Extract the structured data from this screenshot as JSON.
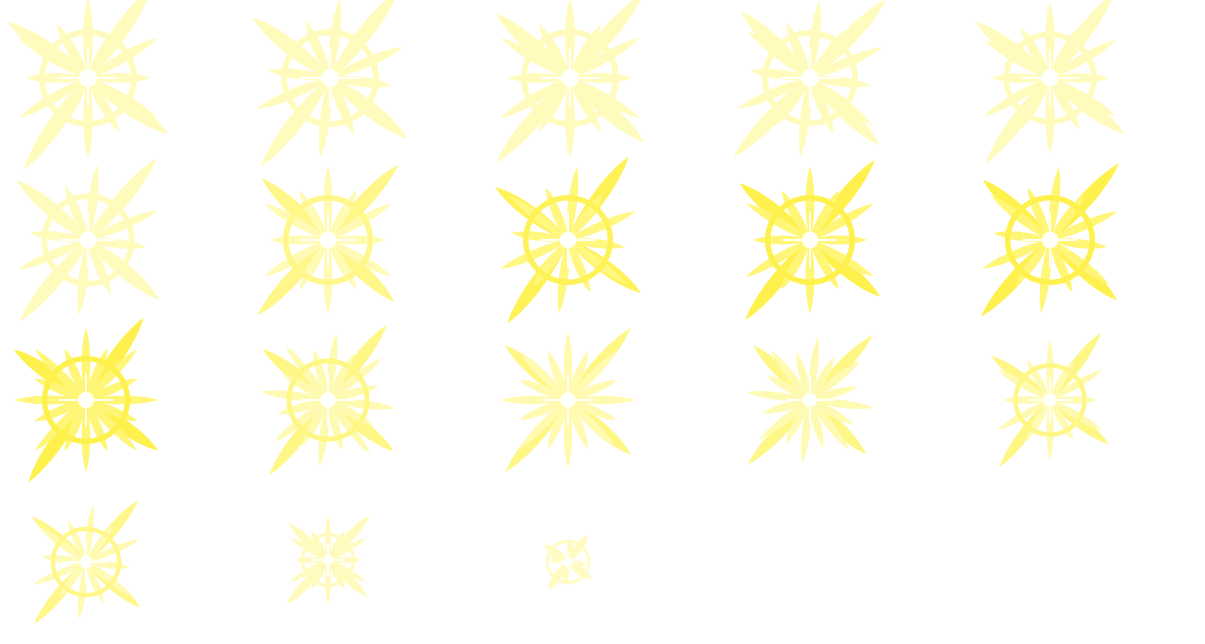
{
  "sprite_sheet": {
    "background_color": "#ffffff",
    "colors": {
      "pale": "#fffaa0",
      "light": "#fff66a",
      "bright": "#fff03a",
      "core": "#ffffff"
    },
    "frames": [
      {
        "id": 1,
        "ray_length": 1.0,
        "spoke_count": 12,
        "ring": true,
        "brightness": 0.55
      },
      {
        "id": 2,
        "ray_length": 1.0,
        "spoke_count": 12,
        "ring": true,
        "brightness": 0.55
      },
      {
        "id": 3,
        "ray_length": 1.0,
        "spoke_count": 12,
        "ring": true,
        "brightness": 0.55
      },
      {
        "id": 4,
        "ray_length": 0.98,
        "spoke_count": 12,
        "ring": true,
        "brightness": 0.55
      },
      {
        "id": 5,
        "ray_length": 0.95,
        "spoke_count": 12,
        "ring": true,
        "brightness": 0.55
      },
      {
        "id": 6,
        "ray_length": 0.95,
        "spoke_count": 12,
        "ring": true,
        "brightness": 0.55
      },
      {
        "id": 7,
        "ray_length": 0.92,
        "spoke_count": 12,
        "ring": true,
        "brightness": 0.75
      },
      {
        "id": 8,
        "ray_length": 0.92,
        "spoke_count": 12,
        "ring": true,
        "brightness": 0.9
      },
      {
        "id": 9,
        "ray_length": 0.92,
        "spoke_count": 12,
        "ring": true,
        "brightness": 1.0
      },
      {
        "id": 10,
        "ray_length": 0.92,
        "spoke_count": 12,
        "ring": true,
        "brightness": 1.0
      },
      {
        "id": 11,
        "ray_length": 0.9,
        "spoke_count": 16,
        "ring": true,
        "brightness": 1.0
      },
      {
        "id": 12,
        "ray_length": 0.85,
        "spoke_count": 16,
        "ring": true,
        "brightness": 0.8
      },
      {
        "id": 13,
        "ray_length": 0.85,
        "spoke_count": 16,
        "ring": false,
        "brightness": 0.85
      },
      {
        "id": 14,
        "ray_length": 0.8,
        "spoke_count": 16,
        "ring": false,
        "brightness": 0.8
      },
      {
        "id": 15,
        "ray_length": 0.75,
        "spoke_count": 12,
        "ring": true,
        "brightness": 0.8
      },
      {
        "id": 16,
        "ray_length": 0.72,
        "spoke_count": 12,
        "ring": true,
        "brightness": 0.75
      },
      {
        "id": 17,
        "ray_length": 0.55,
        "spoke_count": 12,
        "ring": true,
        "brightness": 0.5
      },
      {
        "id": 18,
        "ray_length": 0.3,
        "spoke_count": 4,
        "ring": true,
        "brightness": 0.4
      }
    ]
  }
}
